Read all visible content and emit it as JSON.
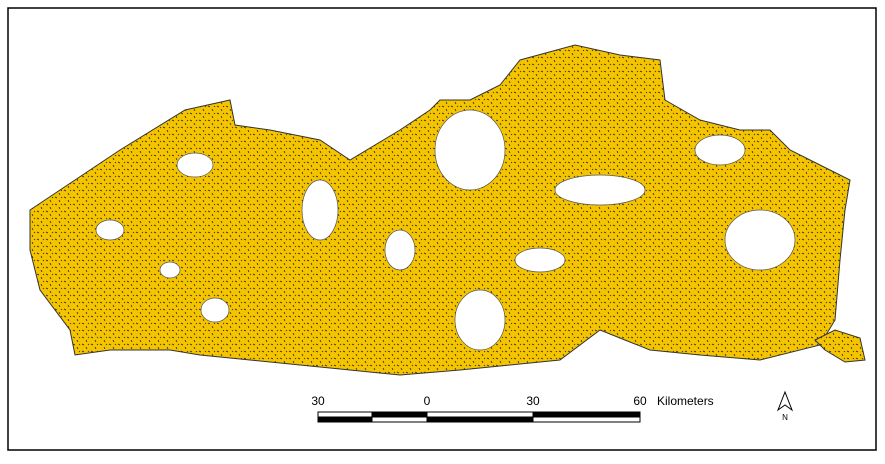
{
  "scale_bar": {
    "ticks": [
      "30",
      "0",
      "30",
      "60"
    ],
    "unit": "Kilometers"
  },
  "north_arrow": {
    "label": "N"
  }
}
